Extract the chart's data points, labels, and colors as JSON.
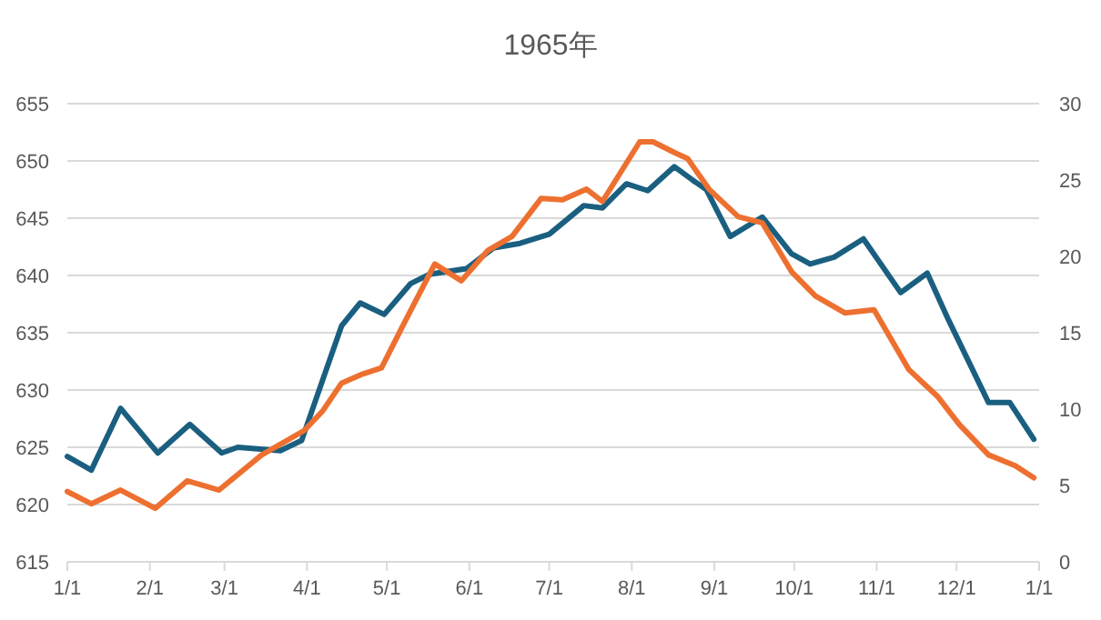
{
  "chart_data": {
    "type": "line",
    "title": "1965年",
    "grid": "y",
    "xlim": [
      "1965-01-01",
      "1966-01-01"
    ],
    "xticks": [
      {
        "value": "1965-01-01",
        "label": "1/1"
      },
      {
        "value": "1965-02-01",
        "label": "2/1"
      },
      {
        "value": "1965-03-01",
        "label": "3/1"
      },
      {
        "value": "1965-04-01",
        "label": "4/1"
      },
      {
        "value": "1965-05-01",
        "label": "5/1"
      },
      {
        "value": "1965-06-01",
        "label": "6/1"
      },
      {
        "value": "1965-07-01",
        "label": "7/1"
      },
      {
        "value": "1965-08-01",
        "label": "8/1"
      },
      {
        "value": "1965-09-01",
        "label": "9/1"
      },
      {
        "value": "1965-10-01",
        "label": "10/1"
      },
      {
        "value": "1965-11-01",
        "label": "11/1"
      },
      {
        "value": "1965-12-01",
        "label": "12/1"
      },
      {
        "value": "1966-01-01",
        "label": "1/1"
      }
    ],
    "ylim": [
      615,
      655
    ],
    "yticks": [
      615,
      620,
      625,
      630,
      635,
      640,
      645,
      650,
      655
    ],
    "y2lim": [
      0,
      30
    ],
    "y2ticks": [
      0,
      5,
      10,
      15,
      20,
      25,
      30
    ],
    "series": [
      {
        "color": "#1a5f80",
        "x": [
          "1965-01-01",
          "1965-01-10",
          "1965-01-21",
          "1965-02-04",
          "1965-02-16",
          "1965-02-28",
          "1965-03-06",
          "1965-03-22",
          "1965-03-30",
          "1965-04-08",
          "1965-04-14",
          "1965-04-21",
          "1965-04-30",
          "1965-05-10",
          "1965-05-17",
          "1965-05-31",
          "1965-06-10",
          "1965-06-20",
          "1965-07-01",
          "1965-07-14",
          "1965-07-21",
          "1965-07-30",
          "1965-08-07",
          "1965-08-17",
          "1965-08-24",
          "1965-08-29",
          "1965-09-07",
          "1965-09-19",
          "1965-09-30",
          "1965-10-07",
          "1965-10-16",
          "1965-10-27",
          "1965-11-10",
          "1965-11-20",
          "1965-11-28",
          "1965-12-13",
          "1965-12-21",
          "1965-12-30"
        ],
        "values": [
          624.2,
          623.0,
          628.4,
          624.5,
          627.0,
          624.5,
          625.0,
          624.7,
          625.6,
          631.6,
          635.6,
          637.6,
          636.6,
          639.3,
          640.1,
          640.6,
          642.4,
          642.8,
          643.6,
          646.1,
          645.9,
          648.0,
          647.4,
          649.5,
          648.3,
          647.5,
          643.4,
          645.1,
          641.9,
          641.0,
          641.6,
          643.2,
          638.5,
          640.2,
          636.1,
          628.9,
          628.9,
          625.7
        ]
      },
      {
        "color": "#ed7030",
        "axis": "y2",
        "x": [
          "1965-01-01",
          "1965-01-10",
          "1965-01-21",
          "1965-02-03",
          "1965-02-15",
          "1965-02-27",
          "1965-03-15",
          "1965-03-24",
          "1965-03-31",
          "1965-04-07",
          "1965-04-14",
          "1965-04-22",
          "1965-04-29",
          "1965-05-08",
          "1965-05-19",
          "1965-05-29",
          "1965-06-08",
          "1965-06-17",
          "1965-06-28",
          "1965-07-06",
          "1965-07-15",
          "1965-07-21",
          "1965-08-04",
          "1965-08-09",
          "1965-08-17",
          "1965-08-22",
          "1965-08-30",
          "1965-09-10",
          "1965-09-19",
          "1965-09-30",
          "1965-10-09",
          "1965-10-20",
          "1965-10-31",
          "1965-11-13",
          "1965-11-24",
          "1965-12-02",
          "1965-12-13",
          "1965-12-23",
          "1965-12-30"
        ],
        "values": [
          4.6,
          3.8,
          4.7,
          3.5,
          5.3,
          4.7,
          7.0,
          7.9,
          8.6,
          9.9,
          11.7,
          12.3,
          12.7,
          15.8,
          19.5,
          18.4,
          20.4,
          21.3,
          23.8,
          23.7,
          24.4,
          23.6,
          27.5,
          27.5,
          26.8,
          26.4,
          24.4,
          22.6,
          22.2,
          19.0,
          17.4,
          16.3,
          16.5,
          12.6,
          10.8,
          9.0,
          7.0,
          6.3,
          5.5
        ]
      }
    ]
  }
}
